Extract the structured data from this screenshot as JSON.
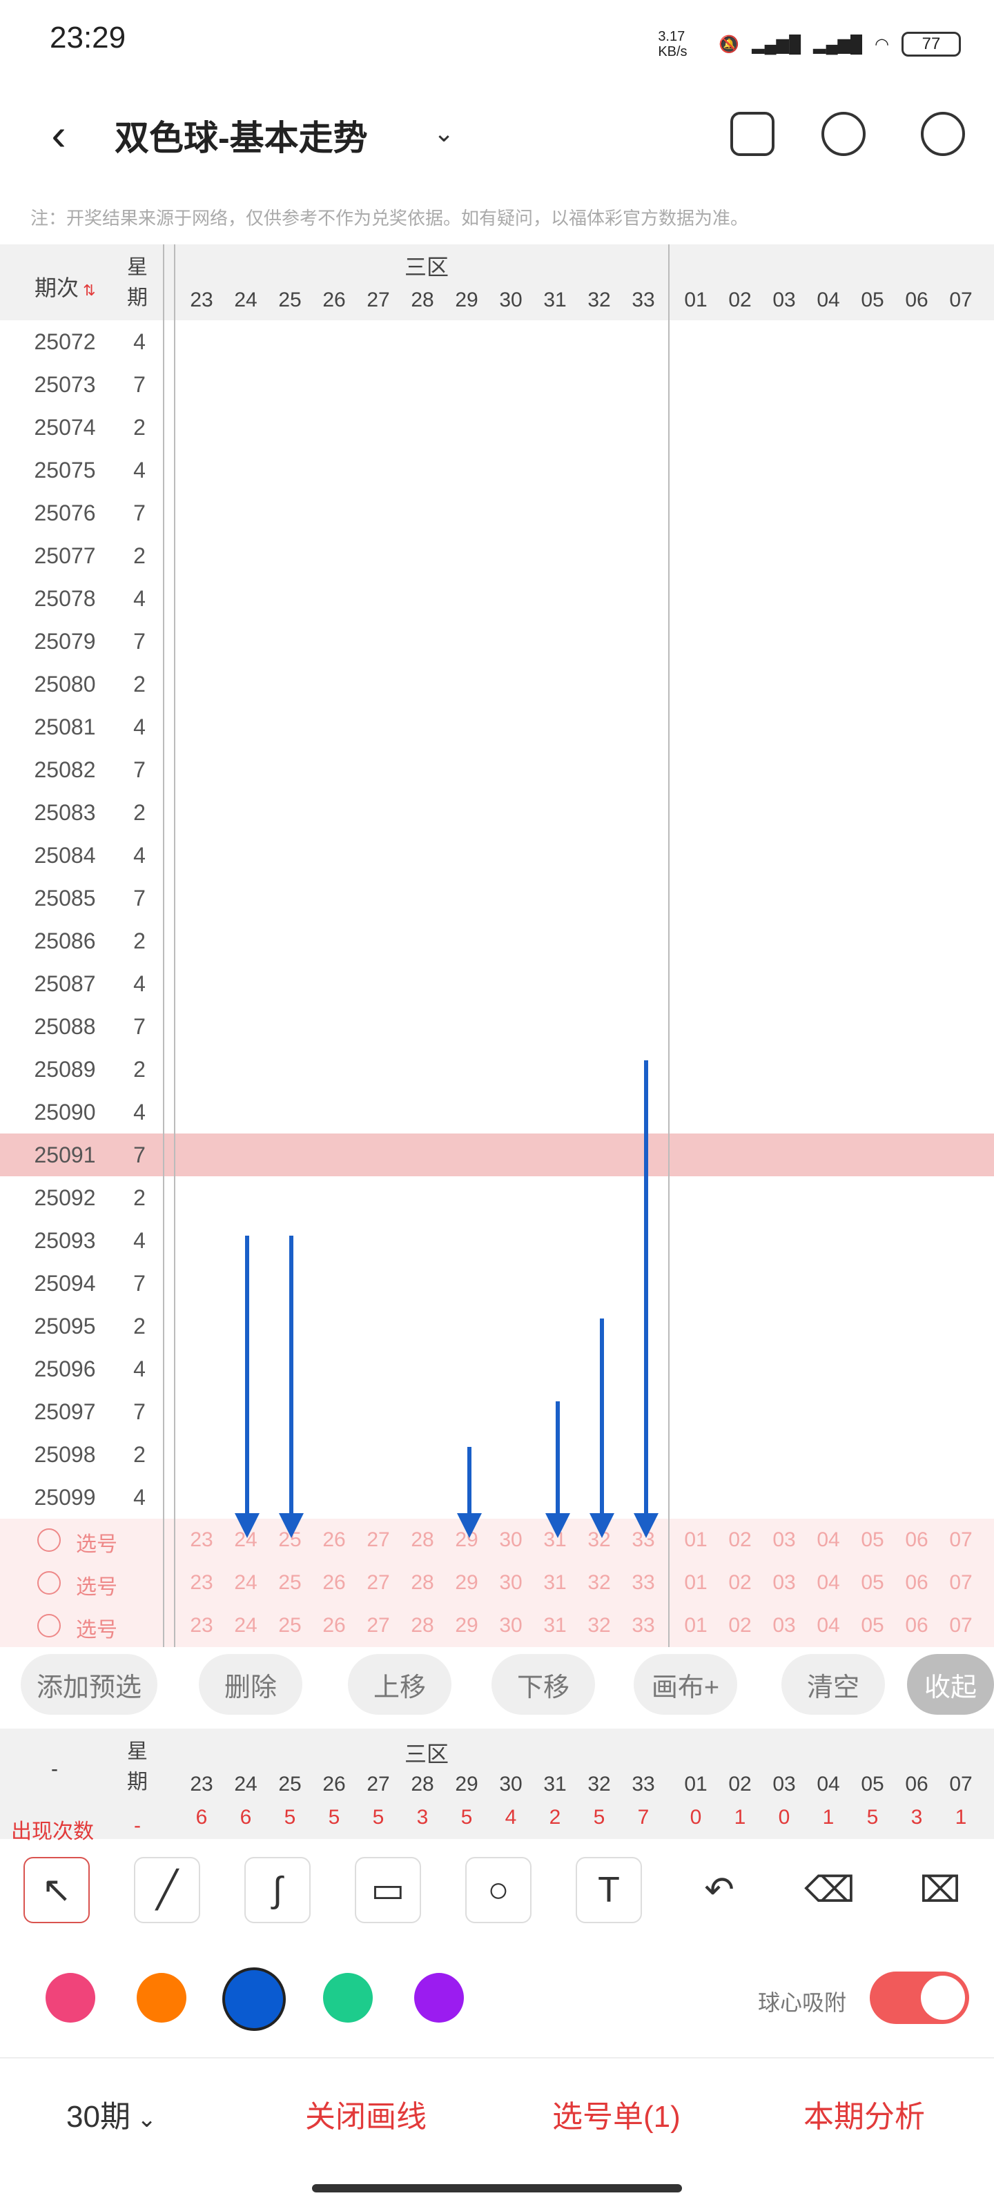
{
  "status": {
    "time": "23:29",
    "speed": "3.17 KB/s",
    "battery": "77"
  },
  "header": {
    "title": "双色球-基本走势"
  },
  "notice": "注：开奖结果来源于网络，仅供参考不作为兑奖依据。如有疑问，以福体彩官方数据为准。",
  "table": {
    "col_period": "期次",
    "col_week": "星期",
    "zone_label": "三区",
    "red_cols": [
      "23",
      "24",
      "25",
      "26",
      "27",
      "28",
      "29",
      "30",
      "31",
      "32",
      "33"
    ],
    "blue_cols": [
      "01",
      "02",
      "03",
      "04",
      "05",
      "06",
      "07"
    ],
    "rows": [
      {
        "p": "25072",
        "w": "4"
      },
      {
        "p": "25073",
        "w": "7"
      },
      {
        "p": "25074",
        "w": "2"
      },
      {
        "p": "25075",
        "w": "4"
      },
      {
        "p": "25076",
        "w": "7"
      },
      {
        "p": "25077",
        "w": "2"
      },
      {
        "p": "25078",
        "w": "4"
      },
      {
        "p": "25079",
        "w": "7"
      },
      {
        "p": "25080",
        "w": "2"
      },
      {
        "p": "25081",
        "w": "4"
      },
      {
        "p": "25082",
        "w": "7"
      },
      {
        "p": "25083",
        "w": "2"
      },
      {
        "p": "25084",
        "w": "4"
      },
      {
        "p": "25085",
        "w": "7"
      },
      {
        "p": "25086",
        "w": "2"
      },
      {
        "p": "25087",
        "w": "4"
      },
      {
        "p": "25088",
        "w": "7"
      },
      {
        "p": "25089",
        "w": "2"
      },
      {
        "p": "25090",
        "w": "4"
      },
      {
        "p": "25091",
        "w": "7"
      },
      {
        "p": "25092",
        "w": "2"
      },
      {
        "p": "25093",
        "w": "4"
      },
      {
        "p": "25094",
        "w": "7"
      },
      {
        "p": "25095",
        "w": "2"
      },
      {
        "p": "25096",
        "w": "4"
      },
      {
        "p": "25097",
        "w": "7"
      },
      {
        "p": "25098",
        "w": "2"
      },
      {
        "p": "25099",
        "w": "4"
      }
    ],
    "select_label": "选号"
  },
  "actions": [
    "添加预选",
    "删除",
    "上移",
    "下移",
    "画布+",
    "清空",
    "收起"
  ],
  "stats_row": {
    "label": "出现次数",
    "week": "-",
    "values": [
      "6",
      "6",
      "5",
      "5",
      "5",
      "3",
      "5",
      "4",
      "2",
      "5",
      "7",
      "0",
      "1",
      "0",
      "1",
      "5",
      "3",
      "1"
    ]
  },
  "magnet_label": "球心吸附",
  "colors": [
    "#f0447a",
    "#ff7a00",
    "#0a5bd1",
    "#1dcc8c",
    "#9b1cf0"
  ],
  "bottom": {
    "periods": "30期",
    "close_lines": "关闭画线",
    "selection": "选号单(1)",
    "analysis": "本期分析"
  }
}
